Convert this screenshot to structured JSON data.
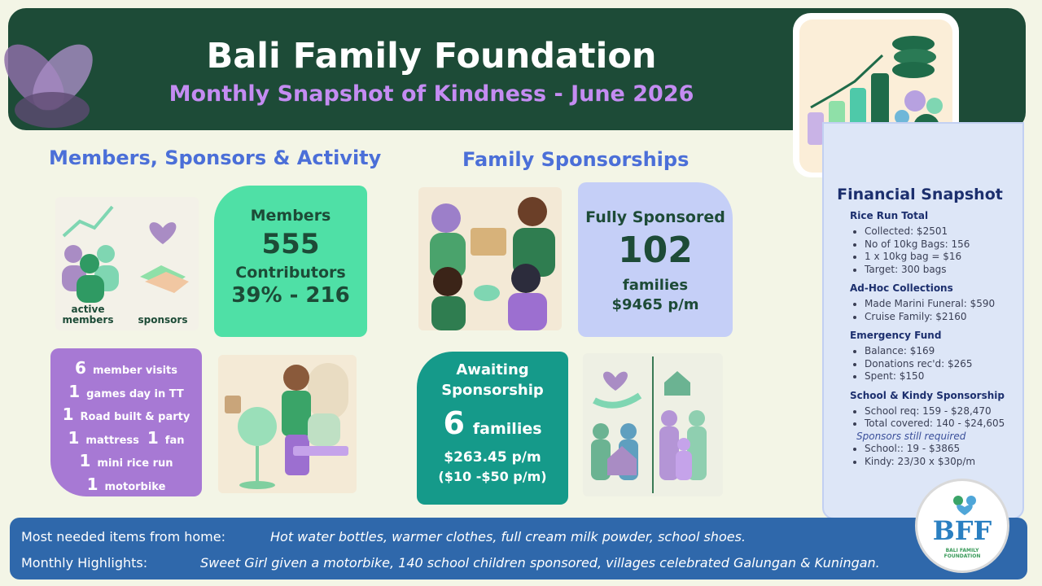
{
  "header": {
    "title": "Bali Family Foundation",
    "subtitle": "Monthly Snapshot of Kindness - June 2026"
  },
  "members_section": {
    "heading": "Members, Sponsors & Activity",
    "image_labels": [
      "active members",
      "sponsors"
    ],
    "members_card": {
      "label": "Members",
      "count": "555",
      "contributors_label": "Contributors",
      "contributors": "39% - 216"
    },
    "activity": [
      [
        {
          "count": "6",
          "text": "member visits"
        }
      ],
      [
        {
          "count": "1",
          "text": "games day in TT"
        }
      ],
      [
        {
          "count": "1",
          "text": "Road built & party"
        }
      ],
      [
        {
          "count": "1",
          "text": "mattress"
        },
        {
          "count": "1",
          "text": "fan"
        }
      ],
      [
        {
          "count": "1",
          "text": "mini rice run"
        }
      ],
      [
        {
          "count": "1",
          "text": "motorbike"
        }
      ]
    ]
  },
  "family_section": {
    "heading": "Family Sponsorships",
    "fully_sponsored": {
      "label": "Fully Sponsored",
      "count": "102",
      "unit": "families",
      "amount": "$9465 p/m"
    },
    "awaiting": {
      "label": "Awaiting Sponsorship",
      "count": "6",
      "unit": "families",
      "amount": "$263.45 p/m",
      "range": "($10 -$50 p/m)"
    }
  },
  "financial": {
    "title": "Financial Snapshot",
    "sections": [
      {
        "heading": "Rice Run Total",
        "items": [
          {
            "bullet": "Collected: $2501"
          },
          {
            "bullet": "No of 10kg Bags: 156"
          },
          {
            "bullet": "1 x 10kg bag = $16"
          },
          {
            "bullet": "Target: 300 bags"
          }
        ]
      },
      {
        "heading": "Ad-Hoc Collections",
        "items": [
          {
            "bullet": "Made Marini Funeral: $590"
          },
          {
            "bullet": "Cruise Family: $2160"
          }
        ]
      },
      {
        "heading": "Emergency Fund",
        "items": [
          {
            "bullet": "Balance: $169"
          },
          {
            "bullet": "Donations rec'd: $265"
          },
          {
            "bullet": "Spent: $150"
          }
        ]
      },
      {
        "heading": "School & Kindy Sponsorship",
        "items": [
          {
            "bullet": "School req: 159 - $28,470"
          },
          {
            "bullet": "Total covered: 140 - $24,605"
          },
          {
            "note": "Sponsors  still required"
          },
          {
            "bullet": "School:: 19 - $3865"
          },
          {
            "bullet": "Kindy: 23/30 x $30p/m"
          }
        ]
      }
    ]
  },
  "footer": {
    "rows": [
      {
        "label": "Most needed items from home:",
        "text": "Hot water bottles, warmer clothes, full cream milk powder, school shoes."
      },
      {
        "label": "Monthly Highlights:",
        "text": "Sweet Girl given a motorbike, 140 school children sponsored, villages celebrated Galungan & Kuningan."
      }
    ]
  },
  "logo": {
    "initials": "BFF",
    "name": "BALI FAMILY FOUNDATION"
  }
}
